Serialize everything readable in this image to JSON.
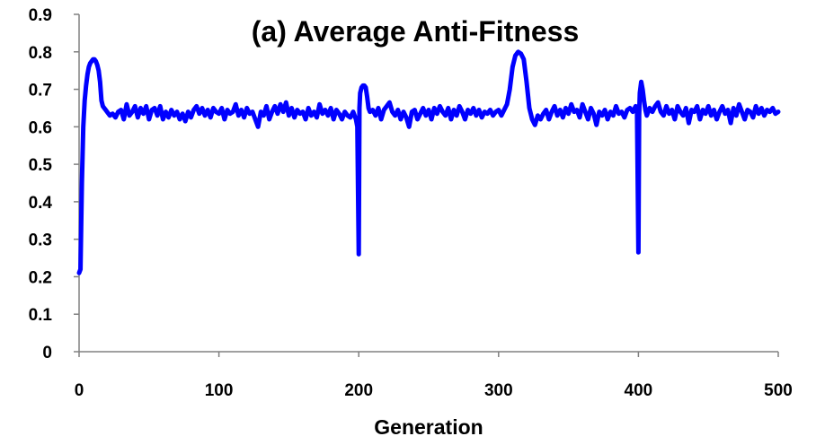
{
  "chart_data": {
    "type": "line",
    "title": "(a) Average Anti-Fitness",
    "xlabel": "Generation",
    "ylabel": "",
    "xlim": [
      0,
      500
    ],
    "ylim": [
      0,
      0.9
    ],
    "x_ticks": [
      0,
      100,
      200,
      300,
      400,
      500
    ],
    "x_tick_labels": [
      "0",
      "100",
      "200",
      "300",
      "400",
      "500"
    ],
    "y_ticks": [
      0,
      0.1,
      0.2,
      0.3,
      0.4,
      0.5,
      0.6,
      0.7,
      0.8,
      0.9
    ],
    "y_tick_labels": [
      "0",
      "0.1",
      "0.2",
      "0.3",
      "0.4",
      "0.5",
      "0.6",
      "0.7",
      "0.8",
      "0.9"
    ],
    "grid": false,
    "legend": "none",
    "series": [
      {
        "color": "#0000ff",
        "points": [
          [
            0,
            0.21
          ],
          [
            1,
            0.22
          ],
          [
            2,
            0.45
          ],
          [
            3,
            0.6
          ],
          [
            4,
            0.67
          ],
          [
            5,
            0.71
          ],
          [
            6,
            0.74
          ],
          [
            7,
            0.76
          ],
          [
            8,
            0.77
          ],
          [
            9,
            0.775
          ],
          [
            10,
            0.78
          ],
          [
            11,
            0.78
          ],
          [
            12,
            0.775
          ],
          [
            13,
            0.765
          ],
          [
            14,
            0.75
          ],
          [
            15,
            0.72
          ],
          [
            16,
            0.67
          ],
          [
            17,
            0.655
          ],
          [
            18,
            0.65
          ],
          [
            19,
            0.645
          ],
          [
            20,
            0.64
          ],
          [
            22,
            0.63
          ],
          [
            24,
            0.635
          ],
          [
            26,
            0.625
          ],
          [
            28,
            0.64
          ],
          [
            30,
            0.645
          ],
          [
            32,
            0.62
          ],
          [
            34,
            0.66
          ],
          [
            36,
            0.63
          ],
          [
            38,
            0.64
          ],
          [
            40,
            0.655
          ],
          [
            42,
            0.625
          ],
          [
            44,
            0.65
          ],
          [
            46,
            0.635
          ],
          [
            48,
            0.655
          ],
          [
            50,
            0.62
          ],
          [
            52,
            0.645
          ],
          [
            54,
            0.65
          ],
          [
            56,
            0.63
          ],
          [
            58,
            0.655
          ],
          [
            60,
            0.62
          ],
          [
            62,
            0.64
          ],
          [
            64,
            0.625
          ],
          [
            66,
            0.645
          ],
          [
            68,
            0.63
          ],
          [
            70,
            0.64
          ],
          [
            72,
            0.62
          ],
          [
            74,
            0.635
          ],
          [
            76,
            0.615
          ],
          [
            78,
            0.64
          ],
          [
            80,
            0.625
          ],
          [
            82,
            0.645
          ],
          [
            84,
            0.655
          ],
          [
            86,
            0.635
          ],
          [
            88,
            0.65
          ],
          [
            90,
            0.63
          ],
          [
            92,
            0.645
          ],
          [
            94,
            0.625
          ],
          [
            96,
            0.65
          ],
          [
            98,
            0.64
          ],
          [
            100,
            0.635
          ],
          [
            102,
            0.65
          ],
          [
            104,
            0.62
          ],
          [
            106,
            0.645
          ],
          [
            108,
            0.635
          ],
          [
            110,
            0.64
          ],
          [
            112,
            0.66
          ],
          [
            114,
            0.63
          ],
          [
            116,
            0.645
          ],
          [
            118,
            0.625
          ],
          [
            120,
            0.65
          ],
          [
            122,
            0.635
          ],
          [
            124,
            0.64
          ],
          [
            126,
            0.62
          ],
          [
            128,
            0.6
          ],
          [
            130,
            0.64
          ],
          [
            132,
            0.63
          ],
          [
            134,
            0.655
          ],
          [
            136,
            0.62
          ],
          [
            138,
            0.64
          ],
          [
            140,
            0.655
          ],
          [
            142,
            0.635
          ],
          [
            144,
            0.66
          ],
          [
            146,
            0.64
          ],
          [
            148,
            0.665
          ],
          [
            150,
            0.63
          ],
          [
            152,
            0.65
          ],
          [
            154,
            0.625
          ],
          [
            156,
            0.645
          ],
          [
            158,
            0.635
          ],
          [
            160,
            0.64
          ],
          [
            162,
            0.62
          ],
          [
            164,
            0.65
          ],
          [
            166,
            0.63
          ],
          [
            168,
            0.64
          ],
          [
            170,
            0.625
          ],
          [
            172,
            0.66
          ],
          [
            174,
            0.635
          ],
          [
            176,
            0.645
          ],
          [
            178,
            0.63
          ],
          [
            180,
            0.65
          ],
          [
            182,
            0.62
          ],
          [
            184,
            0.645
          ],
          [
            186,
            0.635
          ],
          [
            188,
            0.62
          ],
          [
            190,
            0.64
          ],
          [
            192,
            0.63
          ],
          [
            194,
            0.625
          ],
          [
            196,
            0.64
          ],
          [
            198,
            0.62
          ],
          [
            199,
            0.6
          ],
          [
            200,
            0.26
          ],
          [
            200.5,
            0.65
          ],
          [
            201,
            0.69
          ],
          [
            202,
            0.705
          ],
          [
            203,
            0.71
          ],
          [
            204,
            0.71
          ],
          [
            205,
            0.705
          ],
          [
            206,
            0.68
          ],
          [
            207,
            0.65
          ],
          [
            208,
            0.64
          ],
          [
            210,
            0.645
          ],
          [
            212,
            0.63
          ],
          [
            214,
            0.65
          ],
          [
            216,
            0.62
          ],
          [
            218,
            0.645
          ],
          [
            220,
            0.655
          ],
          [
            222,
            0.665
          ],
          [
            224,
            0.64
          ],
          [
            226,
            0.63
          ],
          [
            228,
            0.645
          ],
          [
            230,
            0.62
          ],
          [
            232,
            0.64
          ],
          [
            234,
            0.625
          ],
          [
            236,
            0.6
          ],
          [
            238,
            0.64
          ],
          [
            240,
            0.645
          ],
          [
            242,
            0.62
          ],
          [
            244,
            0.635
          ],
          [
            246,
            0.65
          ],
          [
            248,
            0.63
          ],
          [
            250,
            0.645
          ],
          [
            252,
            0.62
          ],
          [
            254,
            0.65
          ],
          [
            256,
            0.635
          ],
          [
            258,
            0.655
          ],
          [
            260,
            0.64
          ],
          [
            262,
            0.63
          ],
          [
            264,
            0.65
          ],
          [
            266,
            0.62
          ],
          [
            268,
            0.645
          ],
          [
            270,
            0.63
          ],
          [
            272,
            0.655
          ],
          [
            274,
            0.64
          ],
          [
            276,
            0.62
          ],
          [
            278,
            0.645
          ],
          [
            280,
            0.635
          ],
          [
            282,
            0.65
          ],
          [
            284,
            0.63
          ],
          [
            286,
            0.645
          ],
          [
            288,
            0.625
          ],
          [
            290,
            0.64
          ],
          [
            292,
            0.635
          ],
          [
            294,
            0.645
          ],
          [
            296,
            0.63
          ],
          [
            298,
            0.64
          ],
          [
            300,
            0.645
          ],
          [
            302,
            0.63
          ],
          [
            304,
            0.645
          ],
          [
            306,
            0.66
          ],
          [
            308,
            0.7
          ],
          [
            310,
            0.76
          ],
          [
            312,
            0.79
          ],
          [
            314,
            0.8
          ],
          [
            316,
            0.795
          ],
          [
            318,
            0.78
          ],
          [
            320,
            0.72
          ],
          [
            322,
            0.65
          ],
          [
            324,
            0.62
          ],
          [
            326,
            0.605
          ],
          [
            328,
            0.63
          ],
          [
            330,
            0.62
          ],
          [
            332,
            0.635
          ],
          [
            334,
            0.645
          ],
          [
            336,
            0.62
          ],
          [
            338,
            0.64
          ],
          [
            340,
            0.655
          ],
          [
            342,
            0.63
          ],
          [
            344,
            0.645
          ],
          [
            346,
            0.625
          ],
          [
            348,
            0.65
          ],
          [
            350,
            0.635
          ],
          [
            352,
            0.66
          ],
          [
            354,
            0.64
          ],
          [
            356,
            0.645
          ],
          [
            358,
            0.625
          ],
          [
            360,
            0.66
          ],
          [
            362,
            0.64
          ],
          [
            364,
            0.62
          ],
          [
            366,
            0.65
          ],
          [
            368,
            0.635
          ],
          [
            370,
            0.605
          ],
          [
            372,
            0.64
          ],
          [
            374,
            0.63
          ],
          [
            376,
            0.645
          ],
          [
            378,
            0.62
          ],
          [
            380,
            0.64
          ],
          [
            382,
            0.63
          ],
          [
            384,
            0.655
          ],
          [
            386,
            0.635
          ],
          [
            388,
            0.64
          ],
          [
            390,
            0.625
          ],
          [
            392,
            0.645
          ],
          [
            394,
            0.65
          ],
          [
            396,
            0.64
          ],
          [
            398,
            0.655
          ],
          [
            399,
            0.64
          ],
          [
            400,
            0.265
          ],
          [
            400.5,
            0.63
          ],
          [
            401,
            0.69
          ],
          [
            402,
            0.72
          ],
          [
            403,
            0.7
          ],
          [
            404,
            0.67
          ],
          [
            405,
            0.645
          ],
          [
            406,
            0.63
          ],
          [
            408,
            0.65
          ],
          [
            410,
            0.64
          ],
          [
            412,
            0.655
          ],
          [
            414,
            0.665
          ],
          [
            416,
            0.64
          ],
          [
            418,
            0.63
          ],
          [
            420,
            0.655
          ],
          [
            422,
            0.635
          ],
          [
            424,
            0.645
          ],
          [
            426,
            0.62
          ],
          [
            428,
            0.655
          ],
          [
            430,
            0.64
          ],
          [
            432,
            0.63
          ],
          [
            434,
            0.65
          ],
          [
            436,
            0.61
          ],
          [
            438,
            0.645
          ],
          [
            440,
            0.64
          ],
          [
            442,
            0.655
          ],
          [
            444,
            0.62
          ],
          [
            446,
            0.645
          ],
          [
            448,
            0.635
          ],
          [
            450,
            0.655
          ],
          [
            452,
            0.63
          ],
          [
            454,
            0.645
          ],
          [
            456,
            0.62
          ],
          [
            458,
            0.64
          ],
          [
            460,
            0.655
          ],
          [
            462,
            0.635
          ],
          [
            464,
            0.645
          ],
          [
            466,
            0.61
          ],
          [
            468,
            0.65
          ],
          [
            470,
            0.63
          ],
          [
            472,
            0.66
          ],
          [
            474,
            0.64
          ],
          [
            476,
            0.62
          ],
          [
            478,
            0.645
          ],
          [
            480,
            0.64
          ],
          [
            482,
            0.625
          ],
          [
            484,
            0.655
          ],
          [
            486,
            0.635
          ],
          [
            488,
            0.65
          ],
          [
            490,
            0.63
          ],
          [
            492,
            0.645
          ],
          [
            494,
            0.64
          ],
          [
            496,
            0.65
          ],
          [
            498,
            0.635
          ],
          [
            500,
            0.64
          ]
        ]
      }
    ]
  }
}
